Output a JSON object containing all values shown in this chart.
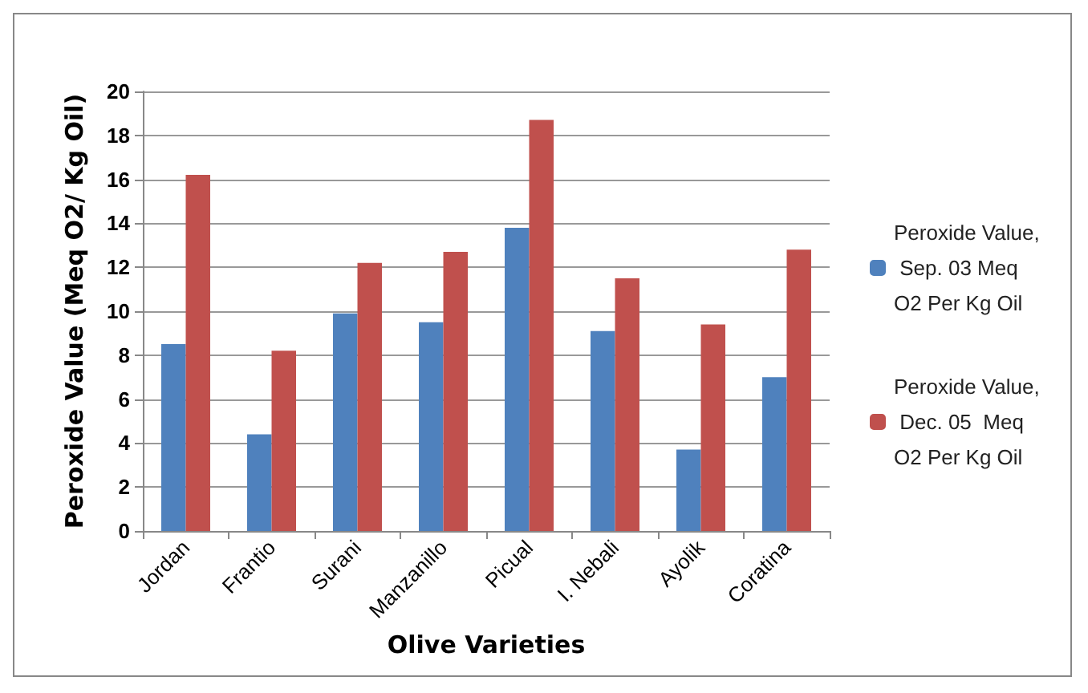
{
  "chart_data": {
    "type": "bar",
    "xlabel": "Olive Varieties",
    "ylabel": "Peroxide Value (Meq O2/ Kg Oil)",
    "categories": [
      "Jordan",
      "Frantio",
      "Surani",
      "Manzanillo",
      "Picual",
      "I. Nebali",
      "Ayolik",
      "Coratina"
    ],
    "series": [
      {
        "name": "Peroxide Value, Sep. 03 Meq O2 Per Kg Oil",
        "color": "#4f81bd",
        "values": [
          8.5,
          4.4,
          9.9,
          9.5,
          13.8,
          9.1,
          3.7,
          7.0
        ]
      },
      {
        "name": "Peroxide Value, Dec. 05  Meq O2 Per Kg Oil",
        "color": "#c0504d",
        "values": [
          16.2,
          8.2,
          12.2,
          12.7,
          18.7,
          11.5,
          9.4,
          12.8
        ]
      }
    ],
    "ylim": [
      0,
      20
    ],
    "yticks": [
      0,
      2,
      4,
      6,
      8,
      10,
      12,
      14,
      16,
      18,
      20
    ],
    "grid": "y",
    "legend": "right"
  }
}
